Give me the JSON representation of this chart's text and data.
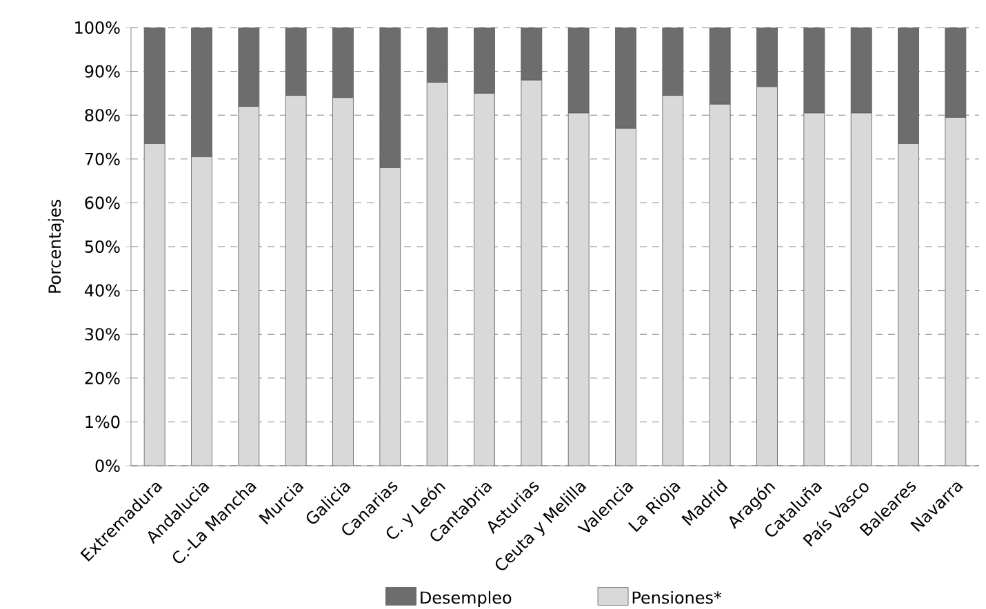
{
  "chart_data": {
    "type": "bar",
    "stacked": true,
    "ylabel": "Porcentajes",
    "categories": [
      "Extremadura",
      "Andalucia",
      "C.-La Mancha",
      "Murcia",
      "Galicia",
      "Canarias",
      "C. y León",
      "Cantabria",
      "Asturias",
      "Ceuta y Melilla",
      "Valencia",
      "La Rioja",
      "Madrid",
      "Aragón",
      "Cataluña",
      "País Vasco",
      "Baleares",
      "Navarra"
    ],
    "series": [
      {
        "name": "Pensiones*",
        "color": "#d9d9d9",
        "values": [
          73.5,
          70.5,
          82,
          84.5,
          84,
          68,
          87.5,
          85,
          88,
          80.5,
          77,
          84.5,
          82.5,
          86.5,
          80.5,
          80.5,
          73.5,
          79.5
        ]
      },
      {
        "name": "Desempleo",
        "color": "#6d6d6d",
        "values": [
          26.5,
          29.5,
          18,
          15.5,
          16,
          32,
          12.5,
          15,
          12,
          19.5,
          23,
          15.5,
          17.5,
          13.5,
          19.5,
          19.5,
          26.5,
          20.5
        ]
      }
    ],
    "ylim": [
      0,
      100
    ],
    "yticks": [
      {
        "value": 0,
        "label": "0%"
      },
      {
        "value": 10,
        "label": "1%0"
      },
      {
        "value": 20,
        "label": "20%"
      },
      {
        "value": 30,
        "label": "30%"
      },
      {
        "value": 40,
        "label": "40%"
      },
      {
        "value": 50,
        "label": "50%"
      },
      {
        "value": 60,
        "label": "60%"
      },
      {
        "value": 70,
        "label": "70%"
      },
      {
        "value": 80,
        "label": "80%"
      },
      {
        "value": 90,
        "label": "90%"
      },
      {
        "value": 100,
        "label": "100%"
      }
    ],
    "grid": "y",
    "legend": "bottom"
  }
}
